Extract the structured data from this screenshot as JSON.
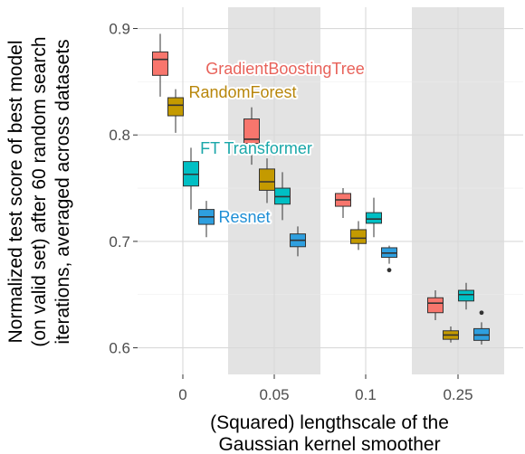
{
  "chart_data": {
    "type": "boxplot",
    "xlabel_lines": [
      "(Squared) lengthscale of the",
      "Gaussian kernel smoother"
    ],
    "ylabel_lines": [
      "Normalized test score of best model",
      "(on valid set) after 60 random search",
      "iterations, averaged across datasets"
    ],
    "categories": [
      "0",
      "0.05",
      "0.1",
      "0.25"
    ],
    "shaded_categories": [
      "0.05",
      "0.25"
    ],
    "ylim": [
      0.575,
      0.92
    ],
    "yticks": [
      0.6,
      0.7,
      0.8,
      0.9
    ],
    "ytick_labels": [
      "0.6",
      "0.7",
      "0.8",
      "0.9"
    ],
    "grid": true,
    "legend": "inline labels",
    "series": [
      {
        "name": "GradientBoostingTree",
        "color": "#F8766D",
        "label_color": "#E8625A",
        "boxes": [
          {
            "category": "0",
            "min": 0.836,
            "q1": 0.856,
            "median": 0.871,
            "q3": 0.878,
            "max": 0.895,
            "outliers": []
          },
          {
            "category": "0.05",
            "min": 0.772,
            "q1": 0.792,
            "median": 0.796,
            "q3": 0.815,
            "max": 0.826,
            "outliers": []
          },
          {
            "category": "0.1",
            "min": 0.722,
            "q1": 0.733,
            "median": 0.739,
            "q3": 0.745,
            "max": 0.75,
            "outliers": []
          },
          {
            "category": "0.25",
            "min": 0.626,
            "q1": 0.633,
            "median": 0.642,
            "q3": 0.647,
            "max": 0.654,
            "outliers": []
          }
        ]
      },
      {
        "name": "RandomForest",
        "color": "#C49A00",
        "label_color": "#B8860B",
        "boxes": [
          {
            "category": "0",
            "min": 0.802,
            "q1": 0.818,
            "median": 0.828,
            "q3": 0.835,
            "max": 0.843,
            "outliers": []
          },
          {
            "category": "0.05",
            "min": 0.736,
            "q1": 0.748,
            "median": 0.756,
            "q3": 0.768,
            "max": 0.778,
            "outliers": []
          },
          {
            "category": "0.1",
            "min": 0.692,
            "q1": 0.698,
            "median": 0.703,
            "q3": 0.711,
            "max": 0.719,
            "outliers": []
          },
          {
            "category": "0.25",
            "min": 0.605,
            "q1": 0.608,
            "median": 0.612,
            "q3": 0.616,
            "max": 0.62,
            "outliers": []
          }
        ]
      },
      {
        "name": "FT Transformer",
        "color": "#00BFC4",
        "label_color": "#1AA7A9",
        "boxes": [
          {
            "category": "0",
            "min": 0.73,
            "q1": 0.752,
            "median": 0.763,
            "q3": 0.775,
            "max": 0.788,
            "outliers": []
          },
          {
            "category": "0.05",
            "min": 0.72,
            "q1": 0.735,
            "median": 0.742,
            "q3": 0.75,
            "max": 0.765,
            "outliers": []
          },
          {
            "category": "0.1",
            "min": 0.704,
            "q1": 0.717,
            "median": 0.721,
            "q3": 0.727,
            "max": 0.741,
            "outliers": []
          },
          {
            "category": "0.25",
            "min": 0.636,
            "q1": 0.644,
            "median": 0.65,
            "q3": 0.654,
            "max": 0.661,
            "outliers": []
          }
        ]
      },
      {
        "name": "Resnet",
        "color": "#2E9FDF",
        "label_color": "#1F8FD6",
        "boxes": [
          {
            "category": "0",
            "min": 0.704,
            "q1": 0.716,
            "median": 0.723,
            "q3": 0.73,
            "max": 0.738,
            "outliers": []
          },
          {
            "category": "0.05",
            "min": 0.686,
            "q1": 0.695,
            "median": 0.701,
            "q3": 0.707,
            "max": 0.714,
            "outliers": []
          },
          {
            "category": "0.1",
            "min": 0.679,
            "q1": 0.685,
            "median": 0.689,
            "q3": 0.694,
            "max": 0.696,
            "outliers": [
              0.673
            ]
          },
          {
            "category": "0.25",
            "min": 0.603,
            "q1": 0.607,
            "median": 0.612,
            "q3": 0.618,
            "max": 0.624,
            "outliers": [
              0.633
            ]
          }
        ]
      }
    ]
  }
}
